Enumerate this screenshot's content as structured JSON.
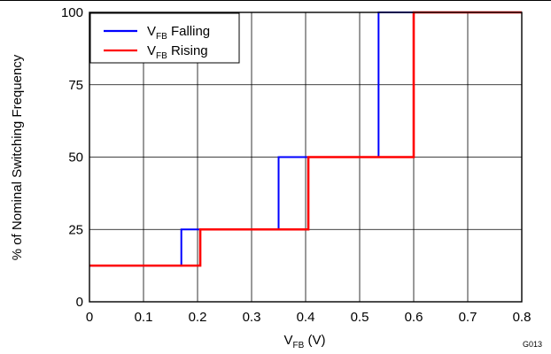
{
  "chart_data": {
    "type": "line",
    "xlabel": "V",
    "xlabel_sub": "FB",
    "xlabel_unit": " (V)",
    "ylabel": "% of Nominal Switching Frequency",
    "xlim": [
      0,
      0.8
    ],
    "ylim": [
      0,
      100
    ],
    "x_ticks": [
      "0",
      "0.1",
      "0.2",
      "0.3",
      "0.4",
      "0.5",
      "0.6",
      "0.7",
      "0.8"
    ],
    "y_ticks": [
      "0",
      "25",
      "50",
      "75",
      "100"
    ],
    "grid": true,
    "legend_position": "top-left",
    "series": [
      {
        "name": "V",
        "name_sub": "FB",
        "name_suffix": " Falling",
        "color": "#0000ff",
        "x": [
          0,
          0.17,
          0.17,
          0.35,
          0.35,
          0.535,
          0.535,
          0.8
        ],
        "y": [
          12.5,
          12.5,
          25,
          25,
          50,
          50,
          100,
          100
        ]
      },
      {
        "name": "V",
        "name_sub": "FB",
        "name_suffix": " Rising",
        "color": "#ff0000",
        "x": [
          0,
          0.205,
          0.205,
          0.405,
          0.405,
          0.6,
          0.6,
          0.8
        ],
        "y": [
          12.5,
          12.5,
          25,
          25,
          50,
          50,
          100,
          100
        ]
      }
    ],
    "note": "G013"
  }
}
